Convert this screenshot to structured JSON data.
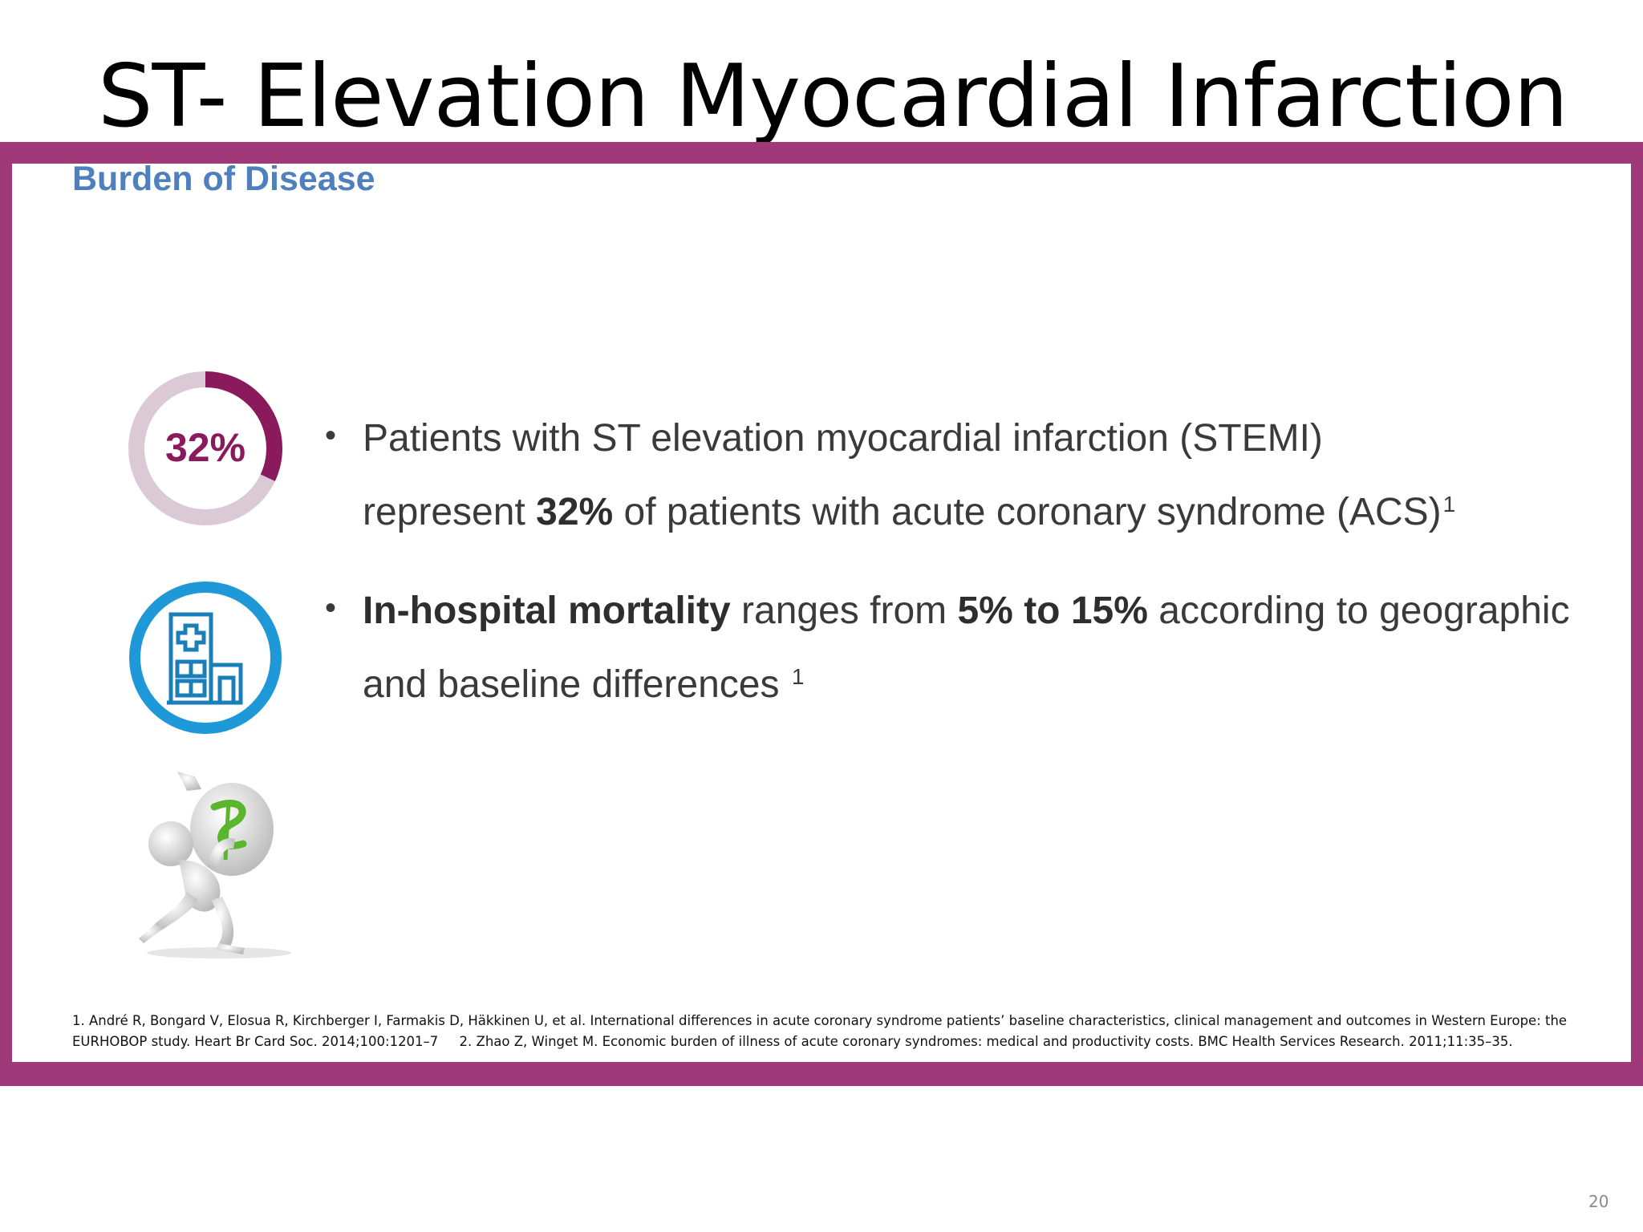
{
  "slide": {
    "title": "ST- Elevation Myocardial Infarction",
    "subtitle": "Burden of Disease",
    "page_number": "20"
  },
  "colors": {
    "frame": "#a0397a",
    "subtitle": "#4f7fbc",
    "donut_fill": "#8b1a5c",
    "donut_track": "#dcc9d6",
    "hospital_ring": "#1e98d6",
    "hospital_line": "#1a7fb8"
  },
  "donut": {
    "label": "32%",
    "fraction": 0.32
  },
  "icons": {
    "donut": "percent-donut-icon",
    "hospital": "hospital-building-icon",
    "burden": "figure-carrying-money-bag-icon"
  },
  "bullets": [
    {
      "line1": "Patients with ST elevation myocardial infarction (STEMI)",
      "pre": "represent ",
      "bold": "32%",
      "post": " of patients with acute coronary syndrome (ACS)",
      "sup": "1"
    },
    {
      "bold1": "In-hospital mortality",
      "mid": " ranges from ",
      "bold2": "5% to 15%",
      "post": " according to geographic and baseline differences ",
      "sup": "1"
    }
  ],
  "references": {
    "ref1": "1. André R, Bongard V, Elosua R, Kirchberger I, Farmakis D, Häkkinen U, et al. International differences in acute coronary syndrome patients’ baseline characteristics, clinical management and outcomes in Western Europe: the EURHOBOP study. Heart Br Card Soc. 2014;100:1201–7",
    "ref2": "2. Zhao Z, Winget M. Economic burden of illness of acute coronary syndromes: medical and productivity costs. BMC Health Services Research. 2011;11:35–35."
  }
}
